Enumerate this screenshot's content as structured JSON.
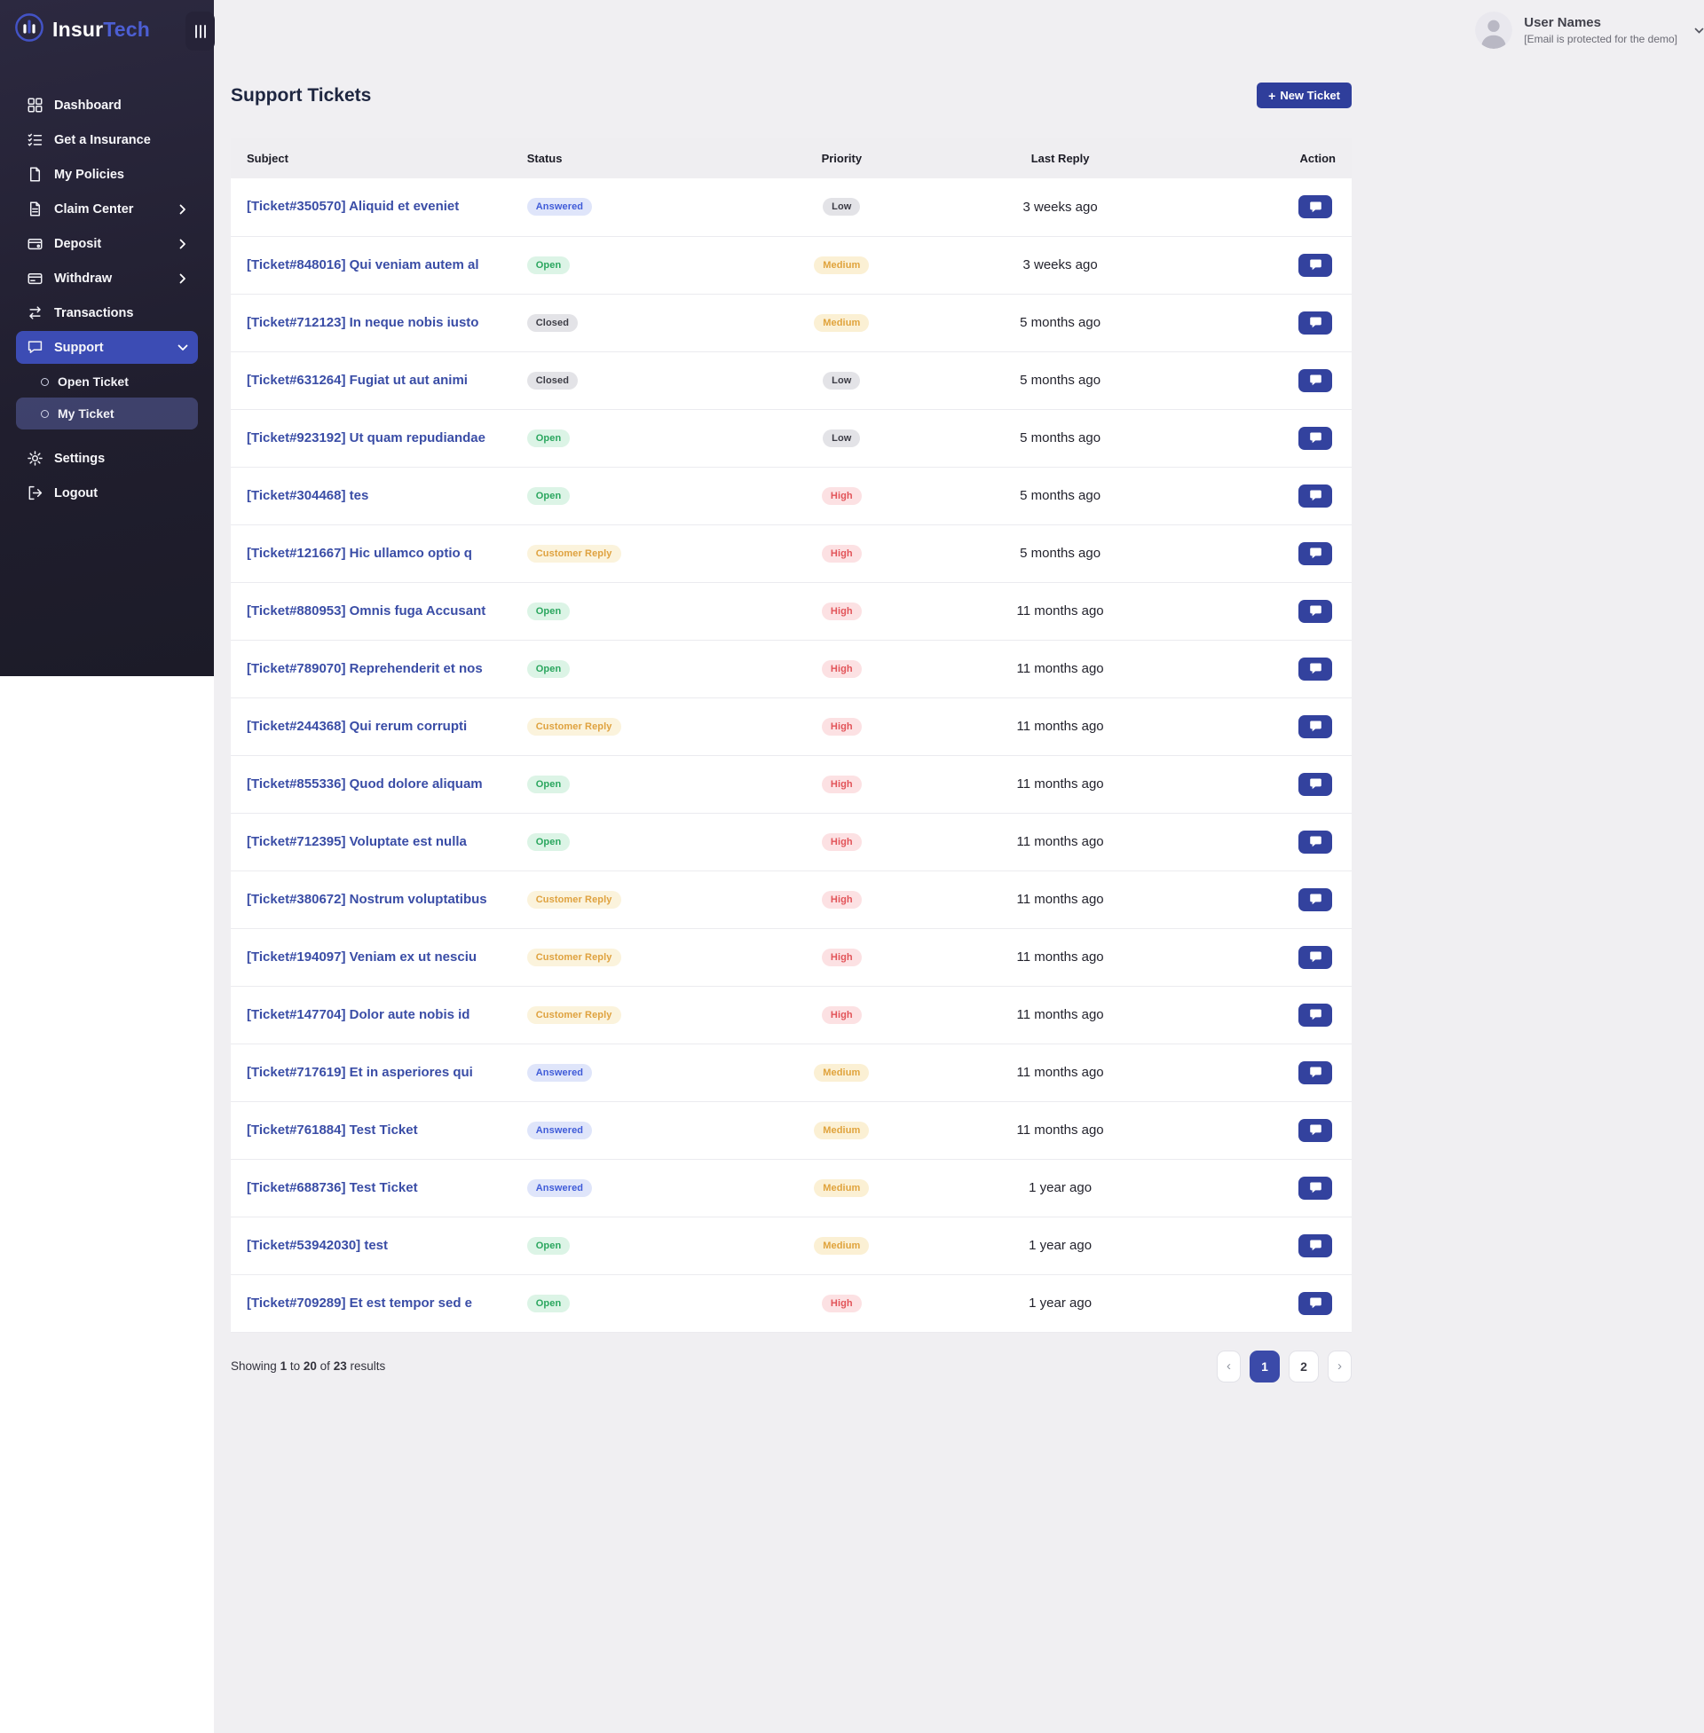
{
  "brand": {
    "name_primary": "Insur",
    "name_secondary": "Tech",
    "logo_icon": "insurtech-logo-icon"
  },
  "header": {
    "toggle_icon": "menu-bars-icon",
    "user": {
      "name": "User Names",
      "email_note": "[Email is protected for the demo]",
      "avatar_icon": "user-avatar-icon",
      "dropdown_icon": "chevron-down-icon"
    }
  },
  "sidebar": {
    "items": [
      {
        "label": "Dashboard",
        "icon": "dashboard-icon"
      },
      {
        "label": "Get a Insurance",
        "icon": "insurance-icon"
      },
      {
        "label": "My Policies",
        "icon": "policies-icon"
      },
      {
        "label": "Claim Center",
        "icon": "claim-icon",
        "chevron": "right"
      },
      {
        "label": "Deposit",
        "icon": "deposit-icon",
        "chevron": "right"
      },
      {
        "label": "Withdraw",
        "icon": "withdraw-icon",
        "chevron": "right"
      },
      {
        "label": "Transactions",
        "icon": "transactions-icon"
      },
      {
        "label": "Support",
        "icon": "support-icon",
        "chevron": "down",
        "active": true,
        "children": [
          {
            "label": "Open Ticket"
          },
          {
            "label": "My Ticket",
            "selected": true
          }
        ]
      },
      {
        "label": "Settings",
        "icon": "settings-icon"
      },
      {
        "label": "Logout",
        "icon": "logout-icon"
      }
    ]
  },
  "page": {
    "title": "Support Tickets",
    "new_ticket_plus": "+",
    "new_ticket_label": "New Ticket"
  },
  "table": {
    "columns": [
      "Subject",
      "Status",
      "Priority",
      "Last Reply",
      "Action"
    ],
    "action_icon": "chat-icon",
    "rows": [
      {
        "subject": "[Ticket#350570] Aliquid et eveniet",
        "status": "Answered",
        "priority": "Low",
        "last_reply": "3 weeks ago"
      },
      {
        "subject": "[Ticket#848016] Qui veniam autem al",
        "status": "Open",
        "priority": "Medium",
        "last_reply": "3 weeks ago"
      },
      {
        "subject": "[Ticket#712123] In neque nobis iusto",
        "status": "Closed",
        "priority": "Medium",
        "last_reply": "5 months ago"
      },
      {
        "subject": "[Ticket#631264] Fugiat ut aut animi",
        "status": "Closed",
        "priority": "Low",
        "last_reply": "5 months ago"
      },
      {
        "subject": "[Ticket#923192] Ut quam repudiandae",
        "status": "Open",
        "priority": "Low",
        "last_reply": "5 months ago"
      },
      {
        "subject": "[Ticket#304468] tes",
        "status": "Open",
        "priority": "High",
        "last_reply": "5 months ago"
      },
      {
        "subject": "[Ticket#121667] Hic ullamco optio q",
        "status": "Customer Reply",
        "priority": "High",
        "last_reply": "5 months ago"
      },
      {
        "subject": "[Ticket#880953] Omnis fuga Accusant",
        "status": "Open",
        "priority": "High",
        "last_reply": "11 months ago"
      },
      {
        "subject": "[Ticket#789070] Reprehenderit et nos",
        "status": "Open",
        "priority": "High",
        "last_reply": "11 months ago"
      },
      {
        "subject": "[Ticket#244368] Qui rerum corrupti",
        "status": "Customer Reply",
        "priority": "High",
        "last_reply": "11 months ago"
      },
      {
        "subject": "[Ticket#855336] Quod dolore aliquam",
        "status": "Open",
        "priority": "High",
        "last_reply": "11 months ago"
      },
      {
        "subject": "[Ticket#712395] Voluptate est nulla",
        "status": "Open",
        "priority": "High",
        "last_reply": "11 months ago"
      },
      {
        "subject": "[Ticket#380672] Nostrum voluptatibus",
        "status": "Customer Reply",
        "priority": "High",
        "last_reply": "11 months ago"
      },
      {
        "subject": "[Ticket#194097] Veniam ex ut nesciu",
        "status": "Customer Reply",
        "priority": "High",
        "last_reply": "11 months ago"
      },
      {
        "subject": "[Ticket#147704] Dolor aute nobis id",
        "status": "Customer Reply",
        "priority": "High",
        "last_reply": "11 months ago"
      },
      {
        "subject": "[Ticket#717619] Et in asperiores qui",
        "status": "Answered",
        "priority": "Medium",
        "last_reply": "11 months ago"
      },
      {
        "subject": "[Ticket#761884] Test Ticket",
        "status": "Answered",
        "priority": "Medium",
        "last_reply": "11 months ago"
      },
      {
        "subject": "[Ticket#688736] Test Ticket",
        "status": "Answered",
        "priority": "Medium",
        "last_reply": "1 year ago"
      },
      {
        "subject": "[Ticket#53942030] test",
        "status": "Open",
        "priority": "Medium",
        "last_reply": "1 year ago"
      },
      {
        "subject": "[Ticket#709289] Et est tempor sed e",
        "status": "Open",
        "priority": "High",
        "last_reply": "1 year ago"
      }
    ]
  },
  "footer": {
    "showing": {
      "prefix": "Showing",
      "from": "1",
      "mid1": "to",
      "to": "20",
      "mid2": "of",
      "total": "23",
      "suffix": "results"
    },
    "pagination": {
      "prev_glyph": "‹",
      "next_glyph": "›",
      "pages": [
        "1",
        "2"
      ],
      "active_page": "1"
    }
  },
  "colors": {
    "accent": "#33429e",
    "sidebar_bg": "#23213a",
    "active_menu": "#3c4cb4",
    "brand_accent": "#4c5ed2",
    "status_answered": "#3f5bd8",
    "status_open": "#2aa65e",
    "status_closed": "#3c3c45",
    "status_customer_reply": "#dfa23f",
    "priority_low": "#3c3c45",
    "priority_medium": "#e0a33c",
    "priority_high": "#e25459"
  }
}
